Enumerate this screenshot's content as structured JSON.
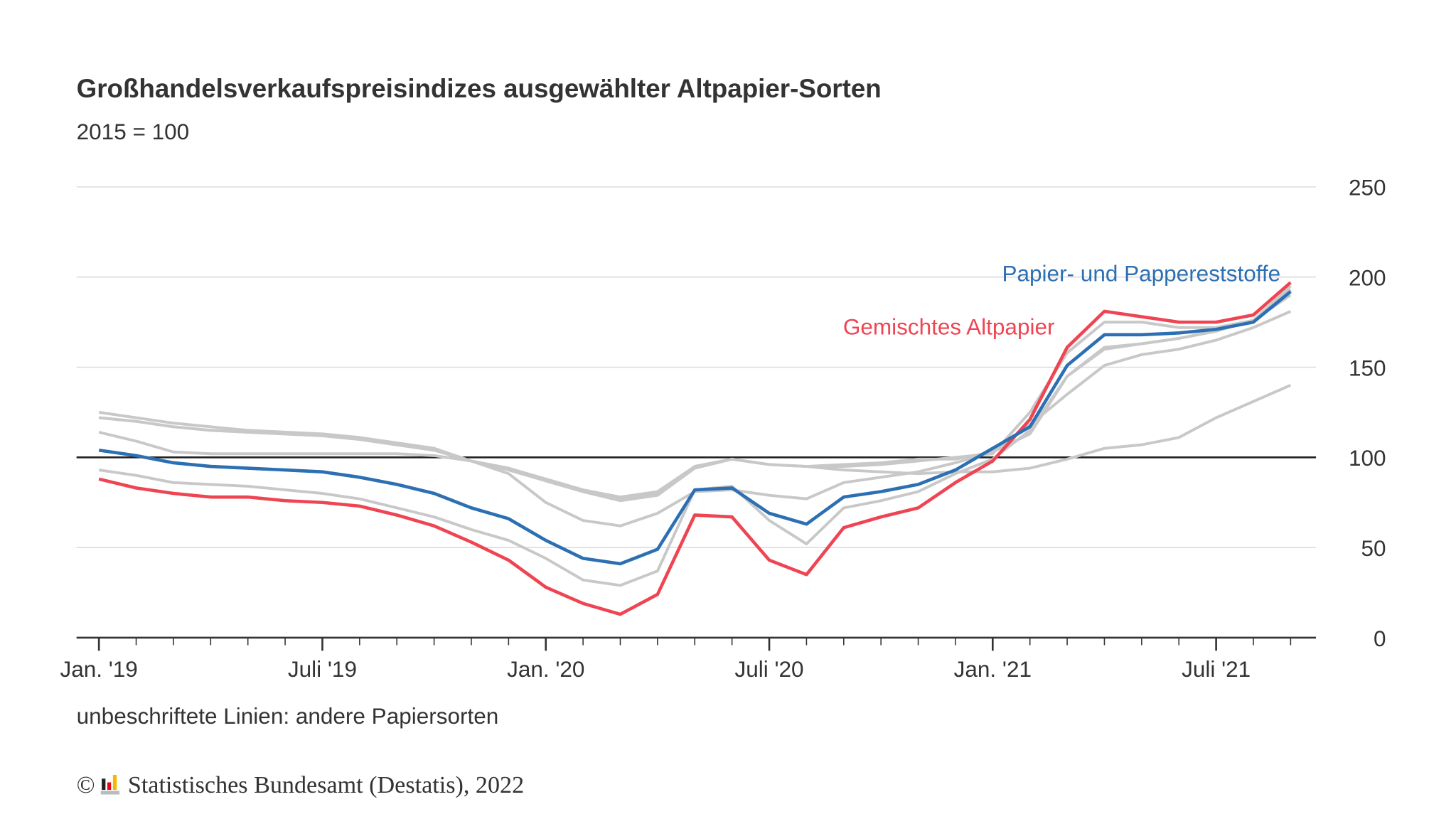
{
  "chart_data": {
    "type": "line",
    "title": "Großhandelsverkaufspreisindizes ausgewählter Altpapier-Sorten",
    "subtitle": "2015 = 100",
    "xlabel": "",
    "ylabel": "",
    "ylim": [
      0,
      250
    ],
    "yticks": [
      "0",
      "50",
      "100",
      "150",
      "200",
      "250"
    ],
    "xtick_labels": [
      {
        "month": "2019-01",
        "label": "Jan. '19"
      },
      {
        "month": "2019-07",
        "label": "Juli '19"
      },
      {
        "month": "2020-01",
        "label": "Jan. '20"
      },
      {
        "month": "2020-07",
        "label": "Juli '20"
      },
      {
        "month": "2021-01",
        "label": "Jan. '21"
      },
      {
        "month": "2021-07",
        "label": "Juli '21"
      }
    ],
    "x_start": "2019-01",
    "x_end": "2021-09",
    "grid": true,
    "reference_line": 100,
    "colors": {
      "highlight_blue": "#2c6fb2",
      "highlight_red": "#ef4452",
      "other": "#c8c8c8",
      "reference": "#222222",
      "grid": "#dddddd"
    },
    "series": [
      {
        "values": [
          125,
          122,
          119,
          117,
          115,
          114,
          113,
          111,
          108,
          105,
          98,
          93,
          87,
          81,
          77,
          80,
          95,
          99,
          96,
          95,
          95,
          96,
          98,
          100,
          102,
          125,
          158,
          175,
          175,
          172,
          172,
          176,
          195
        ]
      },
      {
        "values": [
          122,
          120,
          117,
          115,
          114,
          113,
          112,
          110,
          107,
          104,
          98,
          94,
          87,
          81,
          76,
          79,
          94,
          99,
          96,
          95,
          96,
          97,
          99,
          99,
          103,
          113,
          145,
          160,
          163,
          166,
          170,
          176,
          193
        ]
      },
      {
        "values": [
          114,
          109,
          103,
          102,
          102,
          102,
          102,
          102,
          102,
          101,
          98,
          91,
          75,
          65,
          62,
          69,
          81,
          82,
          79,
          77,
          86,
          89,
          92,
          97,
          103,
          118,
          135,
          151,
          157,
          160,
          165,
          172,
          181
        ]
      },
      {
        "values": [
          93,
          90,
          86,
          85,
          84,
          82,
          80,
          77,
          72,
          67,
          60,
          54,
          44,
          32,
          29,
          37,
          82,
          84,
          65,
          52,
          72,
          76,
          81,
          91,
          99,
          115,
          145,
          161,
          163,
          166,
          170,
          176,
          190
        ]
      },
      {
        "values": [
          122,
          120,
          117,
          115,
          114,
          113,
          112,
          110,
          107,
          104,
          98,
          94,
          88,
          82,
          78,
          81,
          95,
          99,
          96,
          95,
          93,
          92,
          91,
          92,
          92,
          94,
          99,
          105,
          107,
          111,
          122,
          131,
          140
        ]
      },
      {
        "name": "Gemischtes Altpapier",
        "color": "#ef4452",
        "values": [
          88,
          83,
          80,
          78,
          78,
          76,
          75,
          73,
          68,
          62,
          53,
          43,
          28,
          19,
          13,
          24,
          68,
          67,
          43,
          35,
          61,
          67,
          72,
          86,
          98,
          121,
          161,
          181,
          178,
          175,
          175,
          179,
          197
        ]
      },
      {
        "name": "Papier- und Pappereststoffe",
        "color": "#2c6fb2",
        "values": [
          104,
          101,
          97,
          95,
          94,
          93,
          92,
          89,
          85,
          80,
          72,
          66,
          54,
          44,
          41,
          49,
          82,
          83,
          69,
          63,
          78,
          81,
          85,
          93,
          105,
          117,
          151,
          168,
          168,
          169,
          171,
          175,
          192
        ]
      }
    ],
    "note": "unbeschriftete Linien: andere Papiersorten"
  },
  "source": "Statistisches Bundesamt (Destatis), 2022",
  "copyright_symbol": "©"
}
